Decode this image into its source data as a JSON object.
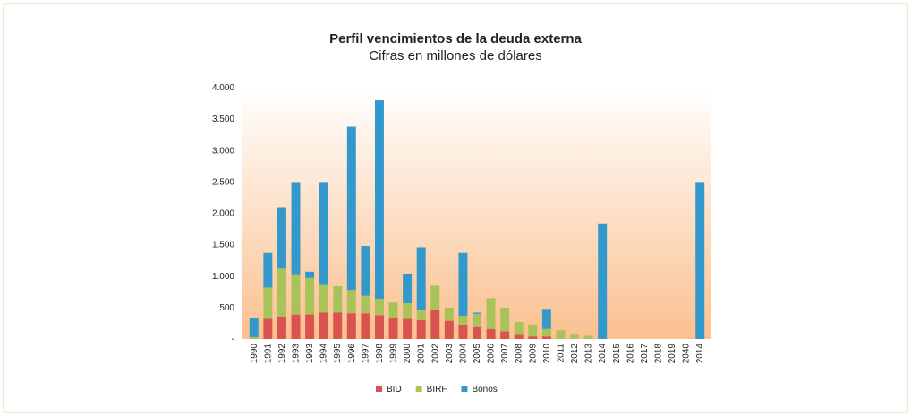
{
  "chart_data": {
    "type": "bar",
    "stacked": true,
    "title": "Perfil vencimientos de la deuda externa",
    "subtitle": "Cifras en millones de dólares",
    "categories": [
      "1990",
      "1991",
      "1992",
      "1993",
      "1993",
      "1994",
      "1995",
      "1996",
      "1997",
      "1998",
      "1999",
      "2000",
      "2001",
      "2002",
      "2003",
      "2004",
      "2005",
      "2006",
      "2007",
      "2008",
      "2009",
      "2010",
      "2011",
      "2012",
      "2013",
      "2014",
      "2015",
      "2016",
      "2017",
      "2018",
      "2019",
      "2040",
      "2014"
    ],
    "series": [
      {
        "name": "BID",
        "color": "#d9534f",
        "values": [
          0,
          320,
          360,
          390,
          390,
          420,
          420,
          410,
          410,
          380,
          330,
          320,
          300,
          470,
          290,
          230,
          190,
          160,
          120,
          80,
          40,
          40,
          0,
          0,
          0,
          0,
          0,
          0,
          0,
          0,
          0,
          0,
          0
        ]
      },
      {
        "name": "BIRF",
        "color": "#a9c25a",
        "values": [
          30,
          500,
          760,
          640,
          580,
          440,
          420,
          370,
          280,
          260,
          250,
          250,
          160,
          380,
          210,
          140,
          210,
          490,
          380,
          190,
          190,
          120,
          140,
          80,
          50,
          0,
          0,
          0,
          0,
          0,
          0,
          0,
          0
        ]
      },
      {
        "name": "Bonos",
        "color": "#3399cc",
        "values": [
          310,
          550,
          980,
          1470,
          100,
          1640,
          0,
          2600,
          790,
          3160,
          0,
          470,
          1000,
          0,
          0,
          1000,
          20,
          0,
          0,
          0,
          0,
          320,
          0,
          0,
          0,
          1840,
          0,
          0,
          0,
          0,
          0,
          0,
          2500
        ]
      }
    ],
    "ylim": [
      0,
      4000
    ],
    "yticks": [
      {
        "value": 0,
        "label": "-"
      },
      500,
      {
        "value": 1000,
        "label": "1.000"
      },
      {
        "value": 1500,
        "label": "1.500"
      },
      {
        "value": 2000,
        "label": "2.000"
      },
      {
        "value": 2500,
        "label": "2.500"
      },
      {
        "value": 3000,
        "label": "3.000"
      },
      {
        "value": 3500,
        "label": "3.500"
      },
      {
        "value": 4000,
        "label": "4.000"
      }
    ],
    "legend": "bottom"
  }
}
